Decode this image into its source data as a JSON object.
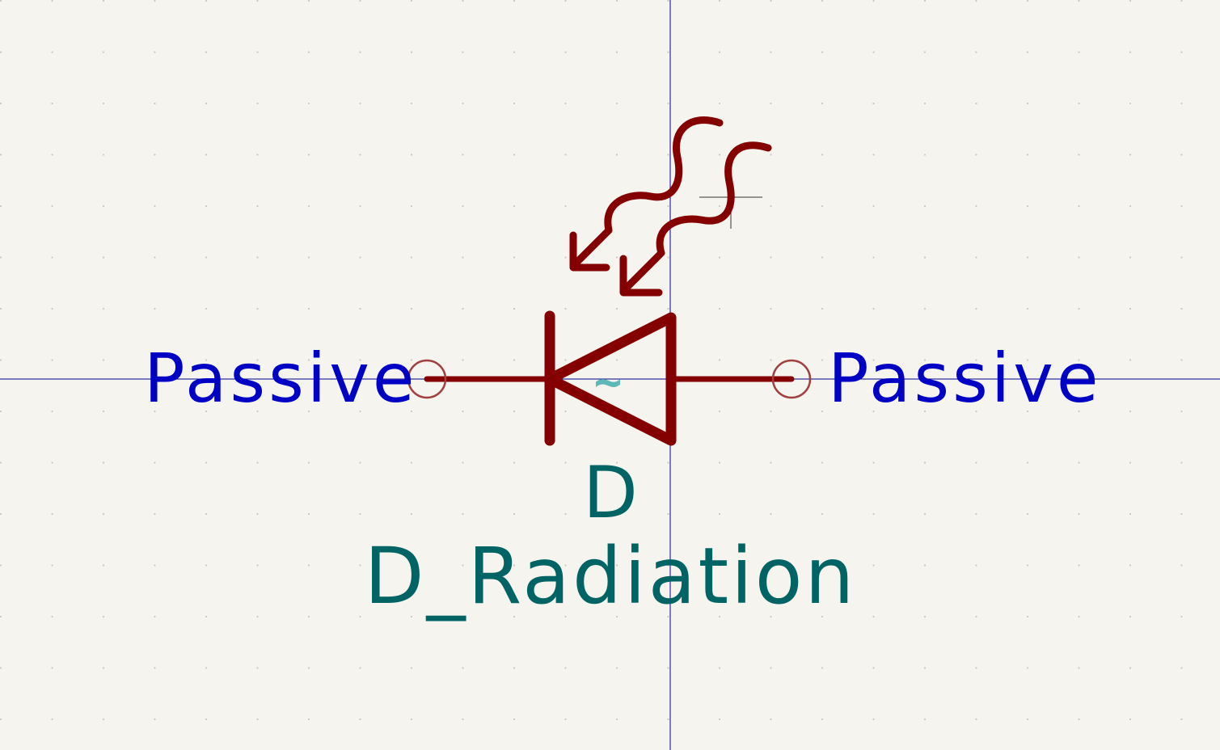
{
  "symbol": {
    "reference": "D",
    "value": "D_Radiation",
    "unit_marker": "~"
  },
  "pins": {
    "left_type": "Passive",
    "right_type": "Passive"
  },
  "colors": {
    "background": "#f5f4ef",
    "body": "#840000",
    "pin_type_text": "#0000c4",
    "field_text": "#006464",
    "pin_circle": "#a04040",
    "axis": "#00008a",
    "grid_dot": "#c8c8c0",
    "unit_marker": "#5fb8b8"
  },
  "icons": {
    "cursor": "crosshair-icon",
    "radiation": "radiation-arrows-icon"
  }
}
